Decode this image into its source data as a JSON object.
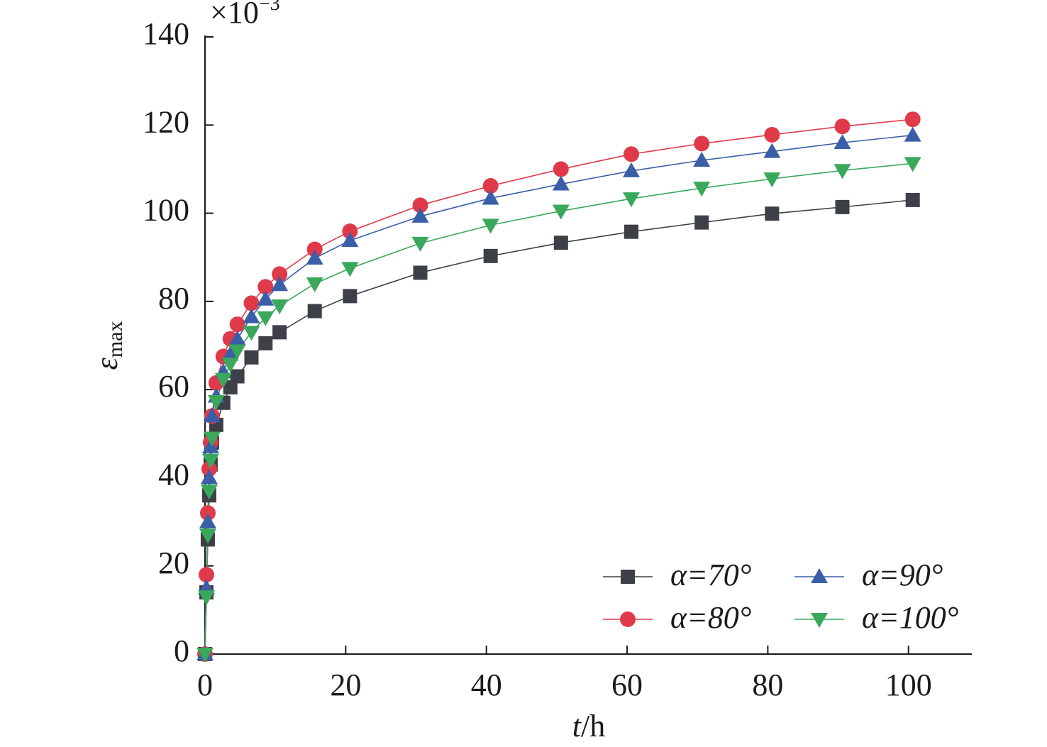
{
  "chart_data": {
    "type": "line",
    "x_label_var": "t",
    "x_label_unit": "/h",
    "y_label": "ε",
    "y_label_sub": "max",
    "scale_base": "×10",
    "scale_exp": "−3",
    "x": [
      0,
      0.2,
      0.4,
      0.6,
      0.8,
      1.0,
      1.6,
      2.6,
      3.6,
      4.6,
      6.6,
      8.6,
      10.6,
      15.6,
      20.6,
      30.6,
      40.6,
      50.6,
      60.6,
      70.6,
      80.6,
      90.6,
      100.6
    ],
    "xlim": [
      0,
      109
    ],
    "xticks": [
      0,
      20,
      40,
      60,
      80,
      100
    ],
    "ylim": [
      0,
      140
    ],
    "yticks": [
      0,
      20,
      40,
      60,
      80,
      100,
      120,
      140
    ],
    "legend": "lower right",
    "series": [
      {
        "name": "α=70°",
        "color": "#3d4047",
        "marker": "square",
        "values": [
          0,
          14,
          26,
          36,
          43,
          48,
          52,
          57,
          60.5,
          63,
          67.3,
          70.5,
          73,
          77.8,
          81.2,
          86.5,
          90.3,
          93.3,
          95.8,
          97.9,
          99.9,
          101.4,
          103
        ]
      },
      {
        "name": "α=80°",
        "color": "#e03a4a",
        "marker": "circle",
        "values": [
          0,
          18,
          32,
          42,
          48,
          54,
          61.5,
          67.5,
          71.5,
          74.8,
          79.6,
          83.3,
          86.2,
          91.8,
          95.9,
          101.8,
          106.2,
          110,
          113.4,
          115.8,
          117.8,
          119.7,
          121.3
        ]
      },
      {
        "name": "α=90°",
        "color": "#3a5ea8",
        "marker": "triangle-up",
        "values": [
          0,
          15,
          30,
          40,
          47,
          54,
          58.5,
          64,
          68,
          71.5,
          76.5,
          80.5,
          83.8,
          89.8,
          93.8,
          99.3,
          103.4,
          106.6,
          109.6,
          112,
          114,
          116,
          117.7
        ]
      },
      {
        "name": "α=100°",
        "color": "#3aa85a",
        "marker": "triangle-down",
        "values": [
          0,
          13,
          27,
          37,
          44,
          49,
          57.3,
          62.3,
          65.8,
          68.8,
          73,
          76.3,
          79,
          84,
          87.5,
          93.2,
          97.3,
          100.5,
          103.3,
          105.7,
          107.8,
          109.7,
          111.3
        ]
      }
    ]
  }
}
